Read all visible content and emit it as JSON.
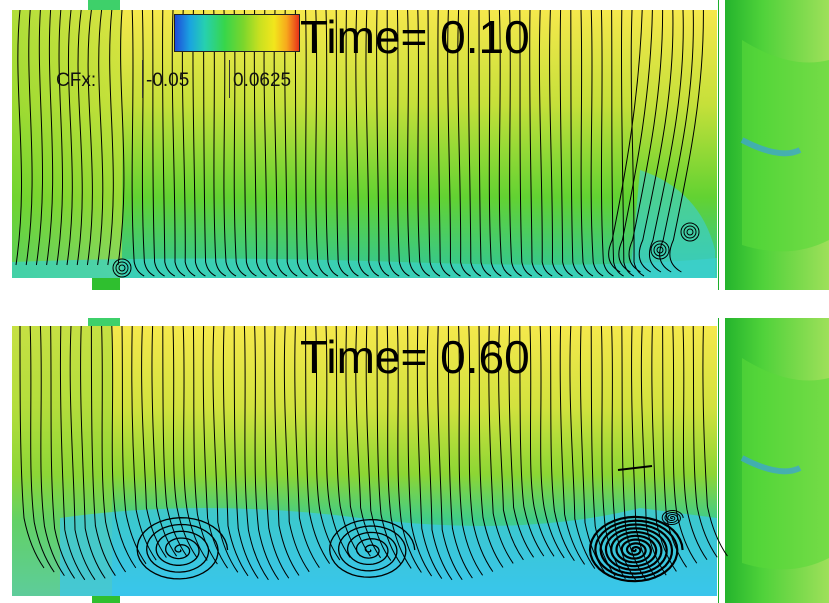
{
  "panels": [
    {
      "time_label": "Time= 0.10"
    },
    {
      "time_label": "Time= 0.60"
    }
  ],
  "colorbar": {
    "title": "CFx:",
    "min_label": "-0.05",
    "max_label": "0.0625"
  },
  "colors": {
    "wall_top": "#f2e64a",
    "wall_mid": "#7fd42c",
    "wall_low": "#2ec86a",
    "separation": "#38c8e8",
    "junction": "#2fbf2f",
    "streamline": "#000000"
  }
}
